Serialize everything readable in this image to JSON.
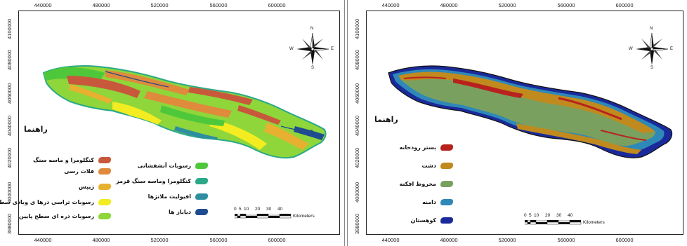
{
  "left_map": {
    "x_ticks": [
      "440000",
      "480000",
      "520000",
      "560000",
      "600000"
    ],
    "y_ticks": [
      "3980000",
      "4000000",
      "4020000",
      "4040000",
      "4060000",
      "4080000",
      "4100000"
    ],
    "legend_title": "راهنما",
    "legend_items": [
      {
        "label": "کنگلومرا و ماسه سنگ",
        "color": "#c8583c"
      },
      {
        "label": "فلات رسی",
        "color": "#e08a3c"
      },
      {
        "label": "ژیپس",
        "color": "#e8b030"
      },
      {
        "label": "رسوبات تراسی درها ی وبادی سطح بالا",
        "color": "#f2ec20"
      },
      {
        "label": "رسوبات دره ای سطح پایین",
        "color": "#8ed63a"
      },
      {
        "label": "رسوبات آتشفشانی",
        "color": "#4ec83a"
      },
      {
        "label": "کنگلومرا وماسه سنگ قرمز",
        "color": "#2aa888"
      },
      {
        "label": "افیولیت ملانژها",
        "color": "#2e8ea0"
      },
      {
        "label": "دیاباز ها",
        "color": "#1e4c8e"
      }
    ],
    "scale_labels": [
      "0",
      "5",
      "10",
      "20",
      "30",
      "40",
      "Kilometers"
    ],
    "compass": {
      "n": "N",
      "s": "S",
      "e": "E",
      "w": "W"
    }
  },
  "right_map": {
    "x_ticks": [
      "440000",
      "480000",
      "520000",
      "560000",
      "600000"
    ],
    "y_ticks": [
      "3980000",
      "4000000",
      "4020000",
      "4040000",
      "4060000",
      "4080000",
      "4100000"
    ],
    "legend_title": "راهنما",
    "legend_items": [
      {
        "label": "بستر رودخانه",
        "color": "#b8221e"
      },
      {
        "label": "دشت",
        "color": "#c08a1e"
      },
      {
        "label": "مخروط افکنه",
        "color": "#7aa060"
      },
      {
        "label": "دامنه",
        "color": "#2e88b8"
      },
      {
        "label": "کوهستان",
        "color": "#1a2a9a"
      }
    ],
    "scale_labels": [
      "0",
      "5",
      "10",
      "20",
      "30",
      "40",
      "Kilometers"
    ],
    "compass": {
      "n": "N",
      "s": "S",
      "e": "E",
      "w": "W"
    }
  }
}
